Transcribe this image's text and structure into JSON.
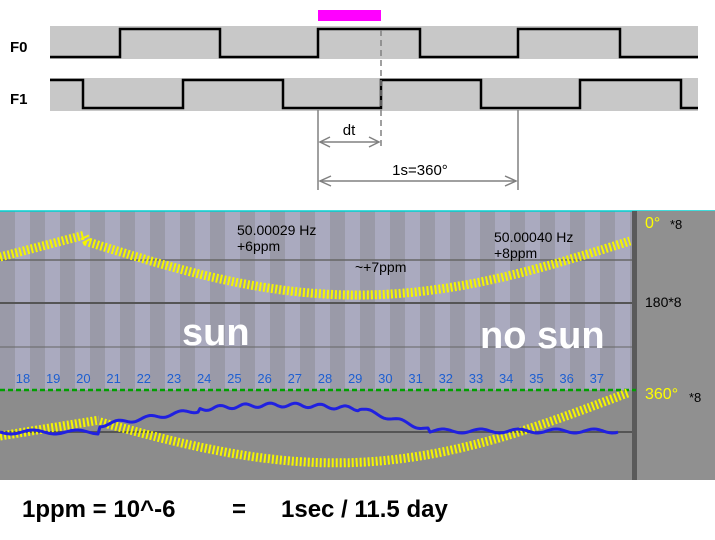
{
  "timing": {
    "signals": [
      {
        "label": "F0",
        "levels": [
          0,
          1,
          0,
          1,
          0,
          1,
          0
        ]
      },
      {
        "label": "F1",
        "levels": [
          1,
          0,
          1,
          0,
          1,
          0,
          1,
          0
        ]
      }
    ],
    "dt_label": "dt",
    "period_label": "1s=360°",
    "marker_color": "#ff00ff"
  },
  "panel": {
    "phase_labels": {
      "top": "0°",
      "top_mult": "*8",
      "mid": "180*8",
      "bottom": "360°",
      "bottom_mult": "*8"
    },
    "annotations": [
      {
        "id": "a1",
        "line1": "50.00029 Hz",
        "line2": "+6ppm"
      },
      {
        "id": "a2",
        "line1": "~+7ppm"
      },
      {
        "id": "a3",
        "line1": "50.00040 Hz",
        "line2": "+8ppm"
      }
    ],
    "sun_label": "sun",
    "nosun_label": "no sun",
    "days": [
      "18",
      "19",
      "20",
      "21",
      "22",
      "23",
      "24",
      "25",
      "26",
      "27",
      "28",
      "29",
      "30",
      "31",
      "32",
      "33",
      "34",
      "35",
      "36",
      "37"
    ],
    "colors": {
      "sine": "#f5f500",
      "trace": "#2020e0",
      "day_numbers": "#1e5fd0",
      "phase_label": "#ffff00",
      "dashed": "#00a000"
    }
  },
  "footer": {
    "left": "1ppm = 10^-6",
    "eq": "=",
    "right": "1sec / 11.5 day"
  }
}
